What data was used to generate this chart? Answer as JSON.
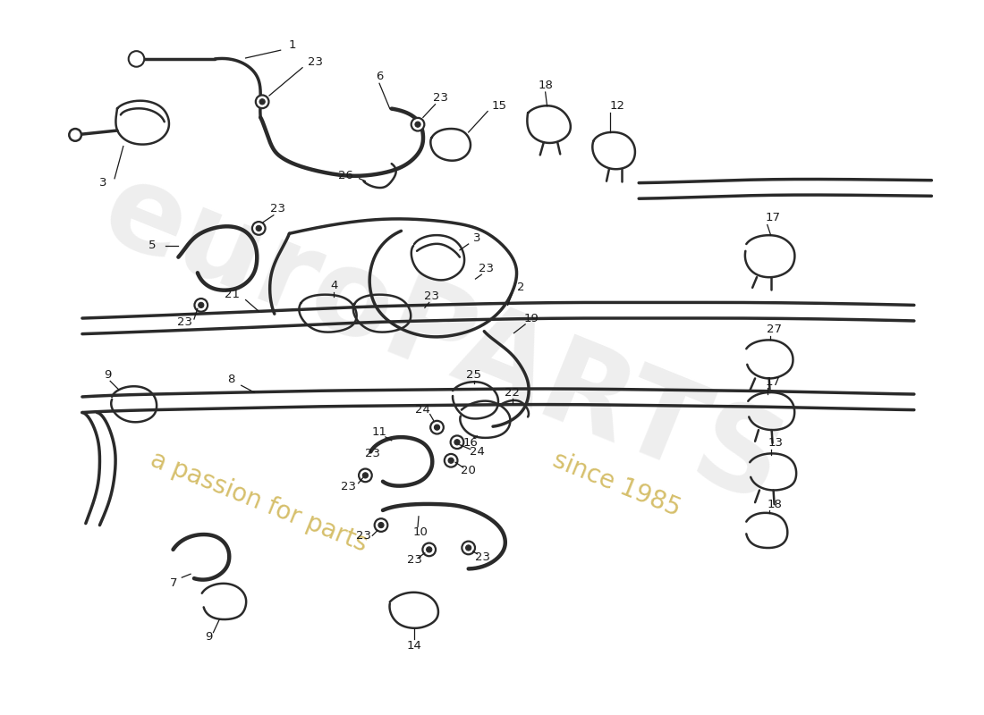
{
  "background_color": "#ffffff",
  "line_color": "#2a2a2a",
  "label_color": "#1a1a1a",
  "watermark1": "euroPARTS",
  "watermark2": "a passion for parts",
  "watermark3": "since 1985",
  "wm_gray": "#c8c8c8",
  "wm_gold": "#c8aa3a",
  "fig_w": 11.0,
  "fig_h": 8.0,
  "dpi": 100
}
